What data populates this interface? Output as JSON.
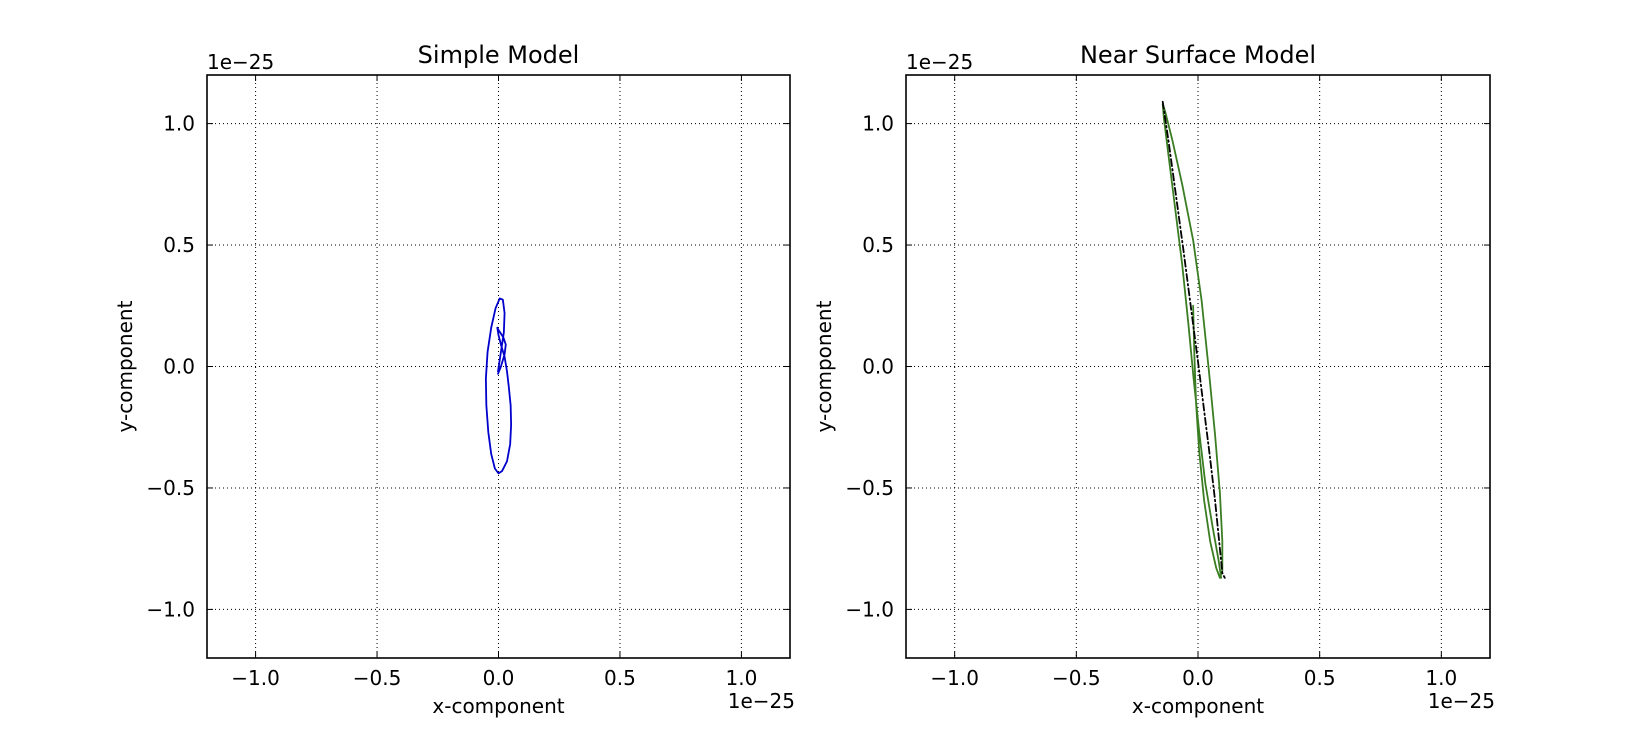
{
  "chart_data": [
    {
      "type": "line",
      "title": "Simple Model",
      "xlabel": "x-component",
      "ylabel": "y-component",
      "x_offset_text": "1e−25",
      "y_offset_text": "1e−25",
      "xlim": [
        -1.2,
        1.2
      ],
      "ylim": [
        -1.2,
        1.2
      ],
      "xticks": [
        -1.0,
        -0.5,
        0.0,
        0.5,
        1.0
      ],
      "yticks": [
        -1.0,
        -0.5,
        0.0,
        0.5,
        1.0
      ],
      "xtick_labels": [
        "−1.0",
        "−0.5",
        "0.0",
        "0.5",
        "1.0"
      ],
      "ytick_labels": [
        "−1.0",
        "−0.5",
        "0.0",
        "0.5",
        "1.0"
      ],
      "grid": true,
      "grid_style": "dotted",
      "series": [
        {
          "style": "solid",
          "color": "#0000cc",
          "points": [
            [
              -0.002,
              -0.03
            ],
            [
              0.01,
              0.0
            ],
            [
              0.025,
              0.05
            ],
            [
              0.03,
              0.09
            ],
            [
              0.02,
              0.12
            ],
            [
              0.0,
              0.15
            ],
            [
              -0.005,
              0.16
            ],
            [
              0.0,
              0.13
            ],
            [
              0.01,
              0.09
            ],
            [
              0.025,
              0.04
            ],
            [
              0.035,
              -0.02
            ],
            [
              0.042,
              -0.08
            ],
            [
              0.05,
              -0.16
            ],
            [
              0.052,
              -0.24
            ],
            [
              0.048,
              -0.32
            ],
            [
              0.035,
              -0.39
            ],
            [
              0.015,
              -0.43
            ],
            [
              0.0,
              -0.44
            ],
            [
              -0.015,
              -0.42
            ],
            [
              -0.03,
              -0.36
            ],
            [
              -0.042,
              -0.27
            ],
            [
              -0.05,
              -0.16
            ],
            [
              -0.052,
              -0.05
            ],
            [
              -0.045,
              0.06
            ],
            [
              -0.03,
              0.16
            ],
            [
              -0.012,
              0.24
            ],
            [
              0.005,
              0.28
            ],
            [
              0.018,
              0.275
            ],
            [
              0.025,
              0.22
            ],
            [
              0.022,
              0.14
            ],
            [
              0.01,
              0.06
            ],
            [
              -0.002,
              -0.02
            ]
          ]
        }
      ]
    },
    {
      "type": "line",
      "title": "Near Surface Model",
      "xlabel": "x-component",
      "ylabel": "y-component",
      "x_offset_text": "1e−25",
      "y_offset_text": "1e−25",
      "xlim": [
        -1.2,
        1.2
      ],
      "ylim": [
        -1.2,
        1.2
      ],
      "xticks": [
        -1.0,
        -0.5,
        0.0,
        0.5,
        1.0
      ],
      "yticks": [
        -1.0,
        -0.5,
        0.0,
        0.5,
        1.0
      ],
      "xtick_labels": [
        "−1.0",
        "−0.5",
        "0.0",
        "0.5",
        "1.0"
      ],
      "ytick_labels": [
        "−1.0",
        "−0.5",
        "0.0",
        "0.5",
        "1.0"
      ],
      "grid": true,
      "grid_style": "dotted",
      "series": [
        {
          "style": "solid",
          "color": "#3a7d22",
          "points": [
            [
              -0.02,
              0.25
            ],
            [
              -0.015,
              0.05
            ],
            [
              -0.008,
              -0.15
            ],
            [
              0.005,
              -0.35
            ],
            [
              0.025,
              -0.55
            ],
            [
              0.05,
              -0.72
            ],
            [
              0.075,
              -0.83
            ],
            [
              0.09,
              -0.87
            ],
            [
              0.1,
              -0.84
            ],
            [
              0.1,
              -0.72
            ],
            [
              0.09,
              -0.52
            ],
            [
              0.07,
              -0.28
            ],
            [
              0.045,
              -0.02
            ],
            [
              0.015,
              0.27
            ],
            [
              -0.02,
              0.52
            ],
            [
              -0.065,
              0.75
            ],
            [
              -0.105,
              0.93
            ],
            [
              -0.135,
              1.05
            ],
            [
              -0.145,
              1.08
            ],
            [
              -0.14,
              1.02
            ],
            [
              -0.12,
              0.86
            ],
            [
              -0.095,
              0.66
            ],
            [
              -0.065,
              0.42
            ],
            [
              -0.04,
              0.18
            ],
            [
              -0.018,
              -0.05
            ],
            [
              0.005,
              -0.27
            ],
            [
              0.03,
              -0.48
            ],
            [
              0.06,
              -0.66
            ],
            [
              0.085,
              -0.8
            ],
            [
              0.095,
              -0.87
            ]
          ]
        },
        {
          "style": "dashdot",
          "color": "#000000",
          "points": [
            [
              -0.145,
              1.09
            ],
            [
              -0.12,
              0.92
            ],
            [
              -0.09,
              0.7
            ],
            [
              -0.06,
              0.48
            ],
            [
              -0.03,
              0.25
            ],
            [
              0.0,
              0.02
            ],
            [
              0.025,
              -0.18
            ],
            [
              0.05,
              -0.38
            ],
            [
              0.07,
              -0.55
            ],
            [
              0.085,
              -0.7
            ],
            [
              0.1,
              -0.85
            ],
            [
              0.11,
              -0.87
            ]
          ]
        }
      ]
    }
  ]
}
